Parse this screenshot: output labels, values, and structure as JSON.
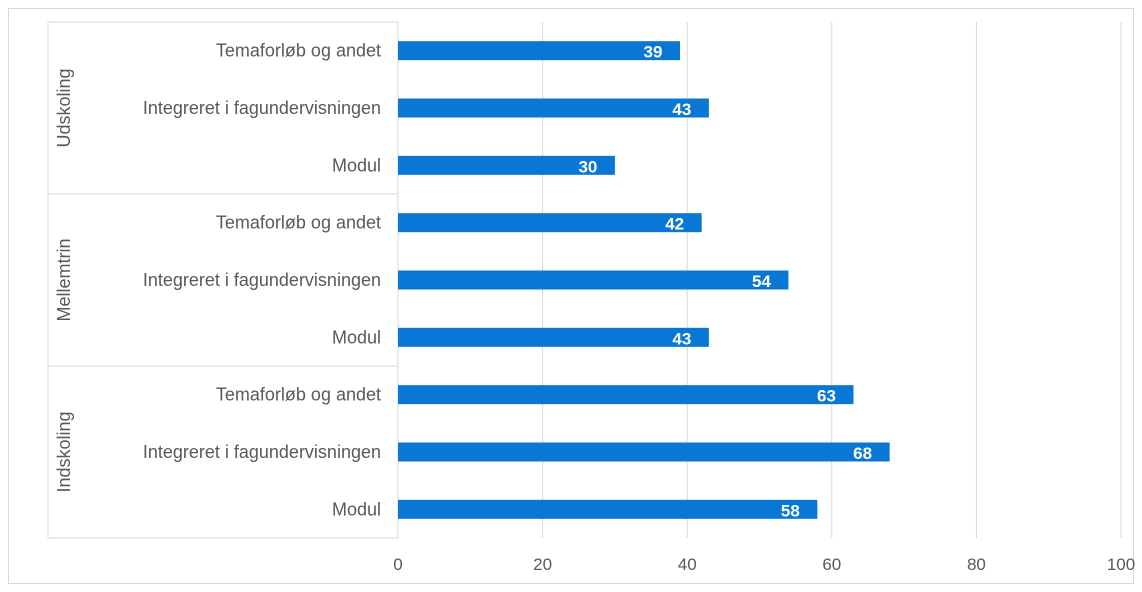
{
  "chart_data": {
    "type": "bar",
    "orientation": "horizontal",
    "title": "",
    "xlabel": "",
    "ylabel": "",
    "xlim": [
      0,
      100
    ],
    "ticks": [
      "0",
      "20",
      "40",
      "60",
      "80",
      "100"
    ],
    "tick_values": [
      0,
      20,
      40,
      60,
      80,
      100
    ],
    "grid": true,
    "bar_color": "#0A77D5",
    "groups": [
      {
        "name": "Udskoling",
        "categories": [
          "Temaforløb og andet",
          "Integreret i fagundervisningen",
          "Modul"
        ],
        "values": [
          39,
          43,
          30
        ],
        "labels": [
          "39",
          "43",
          "30"
        ]
      },
      {
        "name": "Mellemtrin",
        "categories": [
          "Temaforløb og andet",
          "Integreret i fagundervisningen",
          "Modul"
        ],
        "values": [
          42,
          54,
          43
        ],
        "labels": [
          "42",
          "54",
          "43"
        ]
      },
      {
        "name": "Indskoling",
        "categories": [
          "Temaforløb og andet",
          "Integreret i fagundervisningen",
          "Modul"
        ],
        "values": [
          63,
          68,
          58
        ],
        "labels": [
          "63",
          "68",
          "58"
        ]
      }
    ]
  }
}
